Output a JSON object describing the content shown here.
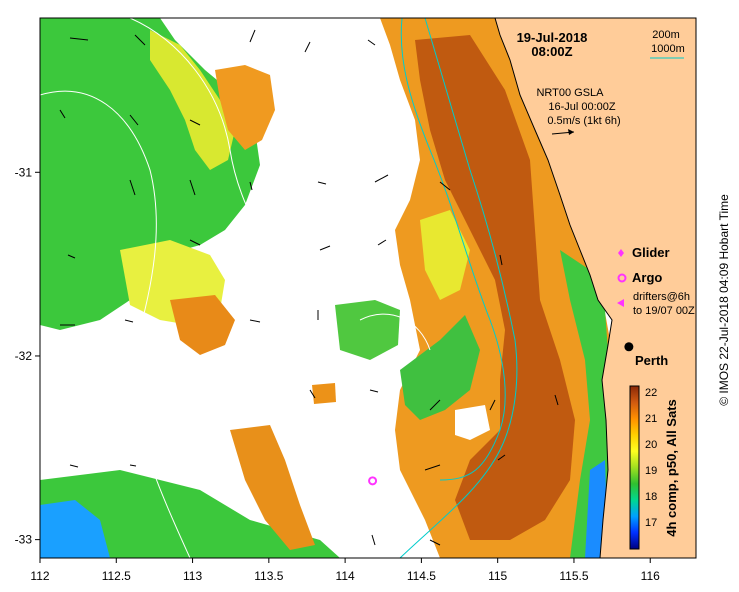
{
  "map": {
    "title_date": "19-Jul-2018",
    "title_time": "08:00Z",
    "depth_legend": [
      "200m",
      "1000m"
    ],
    "current_info": [
      "NRT00 GSLA",
      "16-Jul 00:00Z",
      "0.5m/s (1kt 6h)"
    ],
    "platform_legend": [
      {
        "marker": "diamond",
        "color": "#ff33ff",
        "label": "Glider"
      },
      {
        "marker": "circle",
        "color": "#ff33ff",
        "label": "Argo"
      },
      {
        "marker": "triangle",
        "color": "#ff33ff",
        "label": "drifters@6h"
      }
    ],
    "drifter_note": "to 19/07 00Z",
    "city": {
      "name": "Perth",
      "lon": 115.86,
      "lat": -31.95
    },
    "argo_float": {
      "lon": 114.18,
      "lat": -32.68
    },
    "x_ticks": [
      "112",
      "112.5",
      "113",
      "113.5",
      "114",
      "114.5",
      "115",
      "115.5",
      "116"
    ],
    "y_ticks": [
      "-31",
      "-32",
      "-33"
    ],
    "colorbar": {
      "ticks": [
        "22",
        "21",
        "20",
        "19",
        "18",
        "17"
      ],
      "label": "4h comp, p50, All Sats",
      "colors": [
        "#000080",
        "#0030ff",
        "#00a0ff",
        "#00d890",
        "#30c030",
        "#a0e020",
        "#ffff20",
        "#ffd000",
        "#ff9000",
        "#e06010",
        "#b04000",
        "#8a2808"
      ]
    },
    "credit": "© IMOS 22-Jul-2018 04:09 Hobart Time",
    "colors": {
      "land": "#ffcc99",
      "coast": "#000000",
      "isobath": "#00cccc"
    }
  }
}
